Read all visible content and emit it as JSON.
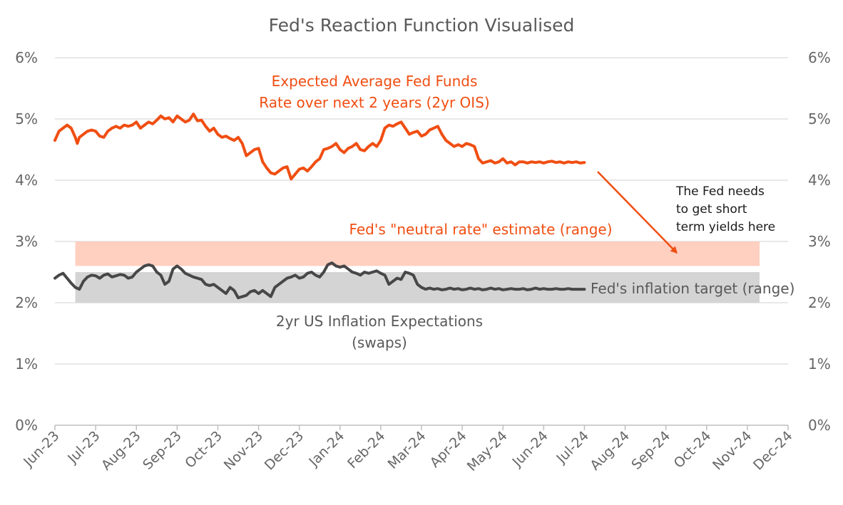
{
  "chart_data": {
    "type": "line",
    "title": "Fed's Reaction Function Visualised",
    "xlabel": "",
    "ylabel": "",
    "x_tick_labels": [
      "Jun-23",
      "Jul-23",
      "Aug-23",
      "Sep-23",
      "Oct-23",
      "Nov-23",
      "Dec-23",
      "Jan-24",
      "Feb-24",
      "Mar-24",
      "Apr-24",
      "May-24",
      "Jun-24",
      "Jul-24",
      "Aug-24",
      "Sep-24",
      "Oct-24",
      "Nov-24",
      "Dec-24"
    ],
    "y_tick_labels": [
      "0%",
      "1%",
      "2%",
      "3%",
      "4%",
      "5%",
      "6%"
    ],
    "ylim": [
      0,
      6
    ],
    "x_month_range": [
      0,
      18
    ],
    "grid": true,
    "colors": {
      "ois": "#F04E12",
      "inflation": "#474747",
      "neutral_band": "#FFCFC0",
      "target_band": "#D4D4D4",
      "axis": "#BFBFBF",
      "grid": "#D9D9D9"
    },
    "bands": [
      {
        "name": "Fed's \"neutral rate\" estimate (range)",
        "x_start": 0.5,
        "x_end": 17.3,
        "y_low": 2.6,
        "y_high": 3.0
      },
      {
        "name": "Fed's inflation target (range)",
        "x_start": 0.5,
        "x_end": 17.3,
        "y_low": 2.0,
        "y_high": 2.5
      }
    ],
    "series": [
      {
        "name": "Expected Average Fed Funds Rate over next 2 years (2yr OIS)",
        "x": [
          0,
          0.1,
          0.2,
          0.3,
          0.4,
          0.5,
          0.55,
          0.6,
          0.7,
          0.8,
          0.9,
          1.0,
          1.1,
          1.2,
          1.3,
          1.4,
          1.5,
          1.6,
          1.7,
          1.8,
          1.9,
          2.0,
          2.1,
          2.2,
          2.3,
          2.4,
          2.5,
          2.6,
          2.7,
          2.8,
          2.9,
          3.0,
          3.1,
          3.2,
          3.3,
          3.4,
          3.5,
          3.6,
          3.7,
          3.8,
          3.9,
          4.0,
          4.1,
          4.2,
          4.3,
          4.4,
          4.5,
          4.6,
          4.7,
          4.8,
          4.9,
          5.0,
          5.1,
          5.2,
          5.3,
          5.4,
          5.5,
          5.6,
          5.7,
          5.8,
          5.9,
          6.0,
          6.1,
          6.2,
          6.3,
          6.4,
          6.5,
          6.6,
          6.7,
          6.8,
          6.9,
          7.0,
          7.1,
          7.2,
          7.3,
          7.4,
          7.5,
          7.6,
          7.7,
          7.8,
          7.9,
          8.0,
          8.1,
          8.2,
          8.3,
          8.4,
          8.5,
          8.6,
          8.7,
          8.8,
          8.9,
          9.0,
          9.1,
          9.2,
          9.3,
          9.4,
          9.5,
          9.6,
          9.7,
          9.8,
          9.9,
          10.0,
          10.1,
          10.2,
          10.3,
          10.4,
          10.5,
          10.6,
          10.7,
          10.8,
          10.9,
          11.0,
          11.1,
          11.2,
          11.3,
          11.4,
          11.5,
          11.6,
          11.7,
          11.8,
          11.9,
          12.0,
          12.1,
          12.2,
          12.3,
          12.4,
          12.5,
          12.6,
          12.7,
          12.8,
          12.9,
          13.0
        ],
        "y": [
          4.65,
          4.8,
          4.85,
          4.9,
          4.85,
          4.7,
          4.6,
          4.7,
          4.75,
          4.8,
          4.82,
          4.8,
          4.72,
          4.7,
          4.8,
          4.85,
          4.88,
          4.85,
          4.9,
          4.88,
          4.9,
          4.95,
          4.85,
          4.9,
          4.95,
          4.92,
          4.98,
          5.05,
          5.0,
          5.02,
          4.95,
          5.05,
          5.0,
          4.95,
          4.98,
          5.08,
          4.97,
          4.98,
          4.88,
          4.8,
          4.85,
          4.75,
          4.7,
          4.72,
          4.68,
          4.65,
          4.7,
          4.6,
          4.4,
          4.45,
          4.5,
          4.52,
          4.3,
          4.2,
          4.12,
          4.1,
          4.15,
          4.2,
          4.22,
          4.02,
          4.1,
          4.18,
          4.2,
          4.15,
          4.22,
          4.3,
          4.35,
          4.5,
          4.52,
          4.55,
          4.6,
          4.5,
          4.45,
          4.52,
          4.55,
          4.6,
          4.5,
          4.48,
          4.55,
          4.6,
          4.55,
          4.65,
          4.85,
          4.9,
          4.88,
          4.92,
          4.95,
          4.85,
          4.75,
          4.78,
          4.8,
          4.72,
          4.75,
          4.82,
          4.85,
          4.88,
          4.75,
          4.65,
          4.6,
          4.55,
          4.58,
          4.55,
          4.6,
          4.58,
          4.55,
          4.35,
          4.28,
          4.3,
          4.32,
          4.28,
          4.3,
          4.35,
          4.28,
          4.3,
          4.25,
          4.3,
          4.3,
          4.28,
          4.3,
          4.29,
          4.3,
          4.28,
          4.3,
          4.31,
          4.29,
          4.3,
          4.28,
          4.3,
          4.29,
          4.3,
          4.28,
          4.29
        ]
      },
      {
        "name": "2yr US Inflation Expectations (swaps)",
        "x": [
          0,
          0.1,
          0.2,
          0.3,
          0.4,
          0.5,
          0.6,
          0.7,
          0.8,
          0.9,
          1.0,
          1.1,
          1.2,
          1.3,
          1.4,
          1.5,
          1.6,
          1.7,
          1.8,
          1.9,
          2.0,
          2.1,
          2.2,
          2.3,
          2.4,
          2.5,
          2.6,
          2.7,
          2.8,
          2.9,
          3.0,
          3.1,
          3.2,
          3.3,
          3.4,
          3.5,
          3.6,
          3.7,
          3.8,
          3.9,
          4.0,
          4.1,
          4.2,
          4.3,
          4.4,
          4.5,
          4.6,
          4.7,
          4.8,
          4.9,
          5.0,
          5.1,
          5.2,
          5.3,
          5.4,
          5.5,
          5.6,
          5.7,
          5.8,
          5.9,
          6.0,
          6.1,
          6.2,
          6.3,
          6.4,
          6.5,
          6.6,
          6.7,
          6.8,
          6.9,
          7.0,
          7.1,
          7.2,
          7.3,
          7.4,
          7.5,
          7.6,
          7.7,
          7.8,
          7.9,
          8.0,
          8.1,
          8.2,
          8.3,
          8.4,
          8.5,
          8.6,
          8.7,
          8.8,
          8.9,
          9.0,
          9.1,
          9.2,
          9.3,
          9.4,
          9.5,
          9.6,
          9.7,
          9.8,
          9.9,
          10.0,
          10.1,
          10.2,
          10.3,
          10.4,
          10.5,
          10.6,
          10.7,
          10.8,
          10.9,
          11.0,
          11.1,
          11.2,
          11.3,
          11.4,
          11.5,
          11.6,
          11.7,
          11.8,
          11.9,
          12.0,
          12.1,
          12.2,
          12.3,
          12.4,
          12.5,
          12.6,
          12.7,
          12.8,
          12.9,
          13.0
        ],
        "y": [
          2.4,
          2.45,
          2.48,
          2.4,
          2.32,
          2.25,
          2.22,
          2.35,
          2.42,
          2.45,
          2.44,
          2.4,
          2.45,
          2.47,
          2.42,
          2.44,
          2.46,
          2.45,
          2.4,
          2.42,
          2.5,
          2.55,
          2.6,
          2.62,
          2.6,
          2.5,
          2.45,
          2.3,
          2.35,
          2.55,
          2.6,
          2.55,
          2.48,
          2.45,
          2.42,
          2.4,
          2.38,
          2.3,
          2.28,
          2.3,
          2.25,
          2.2,
          2.15,
          2.25,
          2.2,
          2.08,
          2.1,
          2.12,
          2.18,
          2.2,
          2.15,
          2.2,
          2.15,
          2.1,
          2.25,
          2.3,
          2.35,
          2.4,
          2.42,
          2.45,
          2.4,
          2.42,
          2.48,
          2.5,
          2.45,
          2.42,
          2.5,
          2.62,
          2.65,
          2.6,
          2.58,
          2.6,
          2.55,
          2.5,
          2.48,
          2.45,
          2.5,
          2.48,
          2.5,
          2.52,
          2.48,
          2.45,
          2.3,
          2.35,
          2.4,
          2.38,
          2.5,
          2.48,
          2.45,
          2.3,
          2.25,
          2.22,
          2.24,
          2.22,
          2.23,
          2.21,
          2.22,
          2.24,
          2.22,
          2.23,
          2.21,
          2.22,
          2.24,
          2.22,
          2.23,
          2.21,
          2.22,
          2.24,
          2.22,
          2.23,
          2.21,
          2.22,
          2.23,
          2.22,
          2.22,
          2.23,
          2.21,
          2.22,
          2.24,
          2.22,
          2.23,
          2.22,
          2.22,
          2.23,
          2.22,
          2.22,
          2.23,
          2.22,
          2.22,
          2.22,
          2.22
        ]
      }
    ],
    "annotations": {
      "ois_label_line1": "Expected Average Fed Funds",
      "ois_label_line2": "Rate over next 2 years (2yr OIS)",
      "neutral_label": "Fed's \"neutral rate\" estimate (range)",
      "target_label": "Fed's inflation target (range)",
      "infl_label_line1": "2yr US Inflation Expectations",
      "infl_label_line2": "(swaps)",
      "fed_note_line1": "The Fed needs",
      "fed_note_line2": "to get short",
      "fed_note_line3": "term yields here"
    }
  }
}
